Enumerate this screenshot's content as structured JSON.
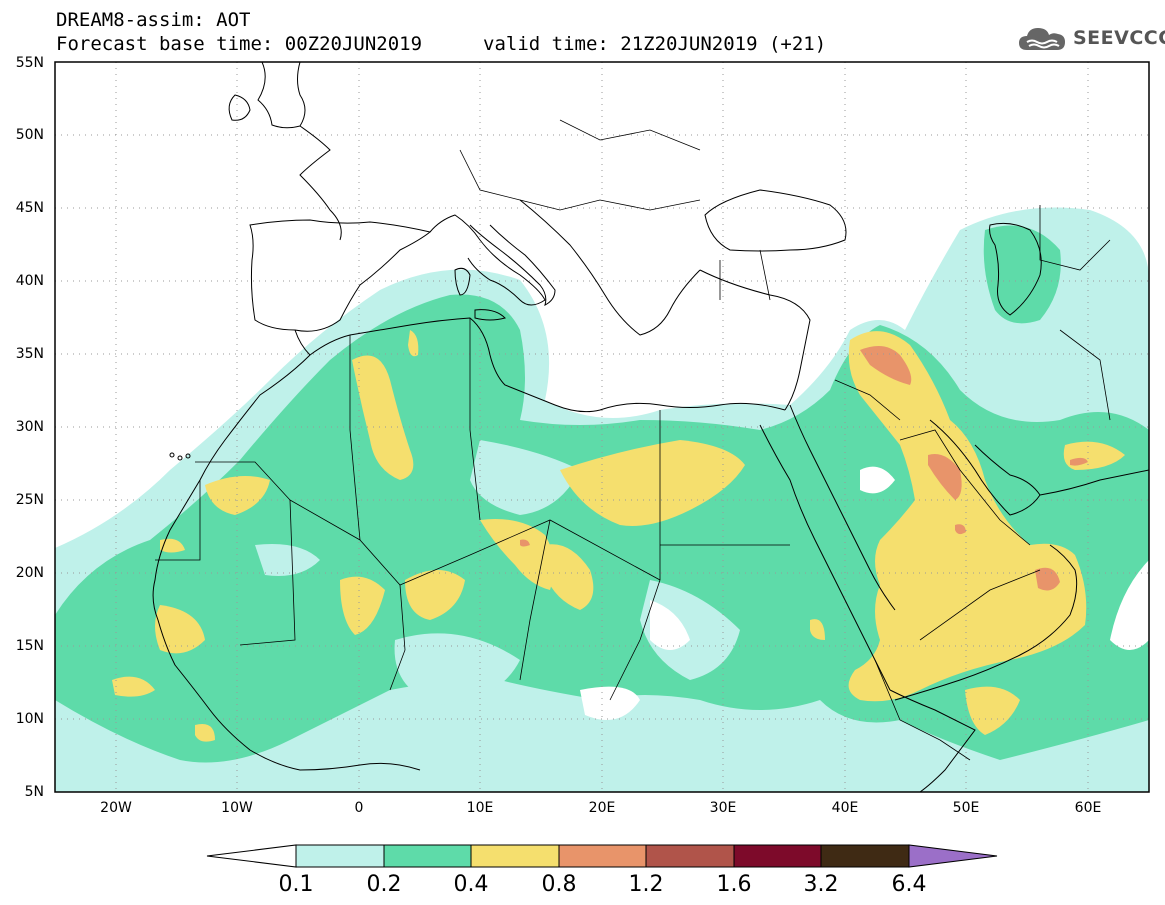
{
  "header": {
    "title": "DREAM8-assim: AOT",
    "base_time_label": "Forecast base time: 00Z20JUN2019",
    "valid_time_label": "valid time: 21Z20JUN2019 (+21)"
  },
  "logo": {
    "text": "SEEVCCC",
    "icon": "cloud-logo-icon"
  },
  "map": {
    "lat_ticks": [
      "55N",
      "50N",
      "45N",
      "40N",
      "35N",
      "30N",
      "25N",
      "20N",
      "15N",
      "10N",
      "5N"
    ],
    "lon_ticks": [
      "20W",
      "10W",
      "0",
      "10E",
      "20E",
      "30E",
      "40E",
      "50E",
      "60E"
    ],
    "grid": "dotted",
    "colors": {
      "c01": "#bff1ea",
      "c02": "#5edba9",
      "c04": "#f5df6e",
      "c08": "#e8946a",
      "c12": "#b0544a",
      "c16": "#7d0a2a",
      "c32": "#3f2a14",
      "c64": "#9b6fc8"
    }
  },
  "colorbar": {
    "labels": [
      "0.1",
      "0.2",
      "0.4",
      "0.8",
      "1.2",
      "1.6",
      "3.2",
      "6.4"
    ],
    "colors": [
      "#bff1ea",
      "#5edba9",
      "#f5df6e",
      "#e8946a",
      "#b0544a",
      "#7d0a2a",
      "#3f2a14"
    ],
    "below_color": "#ffffff",
    "above_color": "#9b6fc8"
  }
}
